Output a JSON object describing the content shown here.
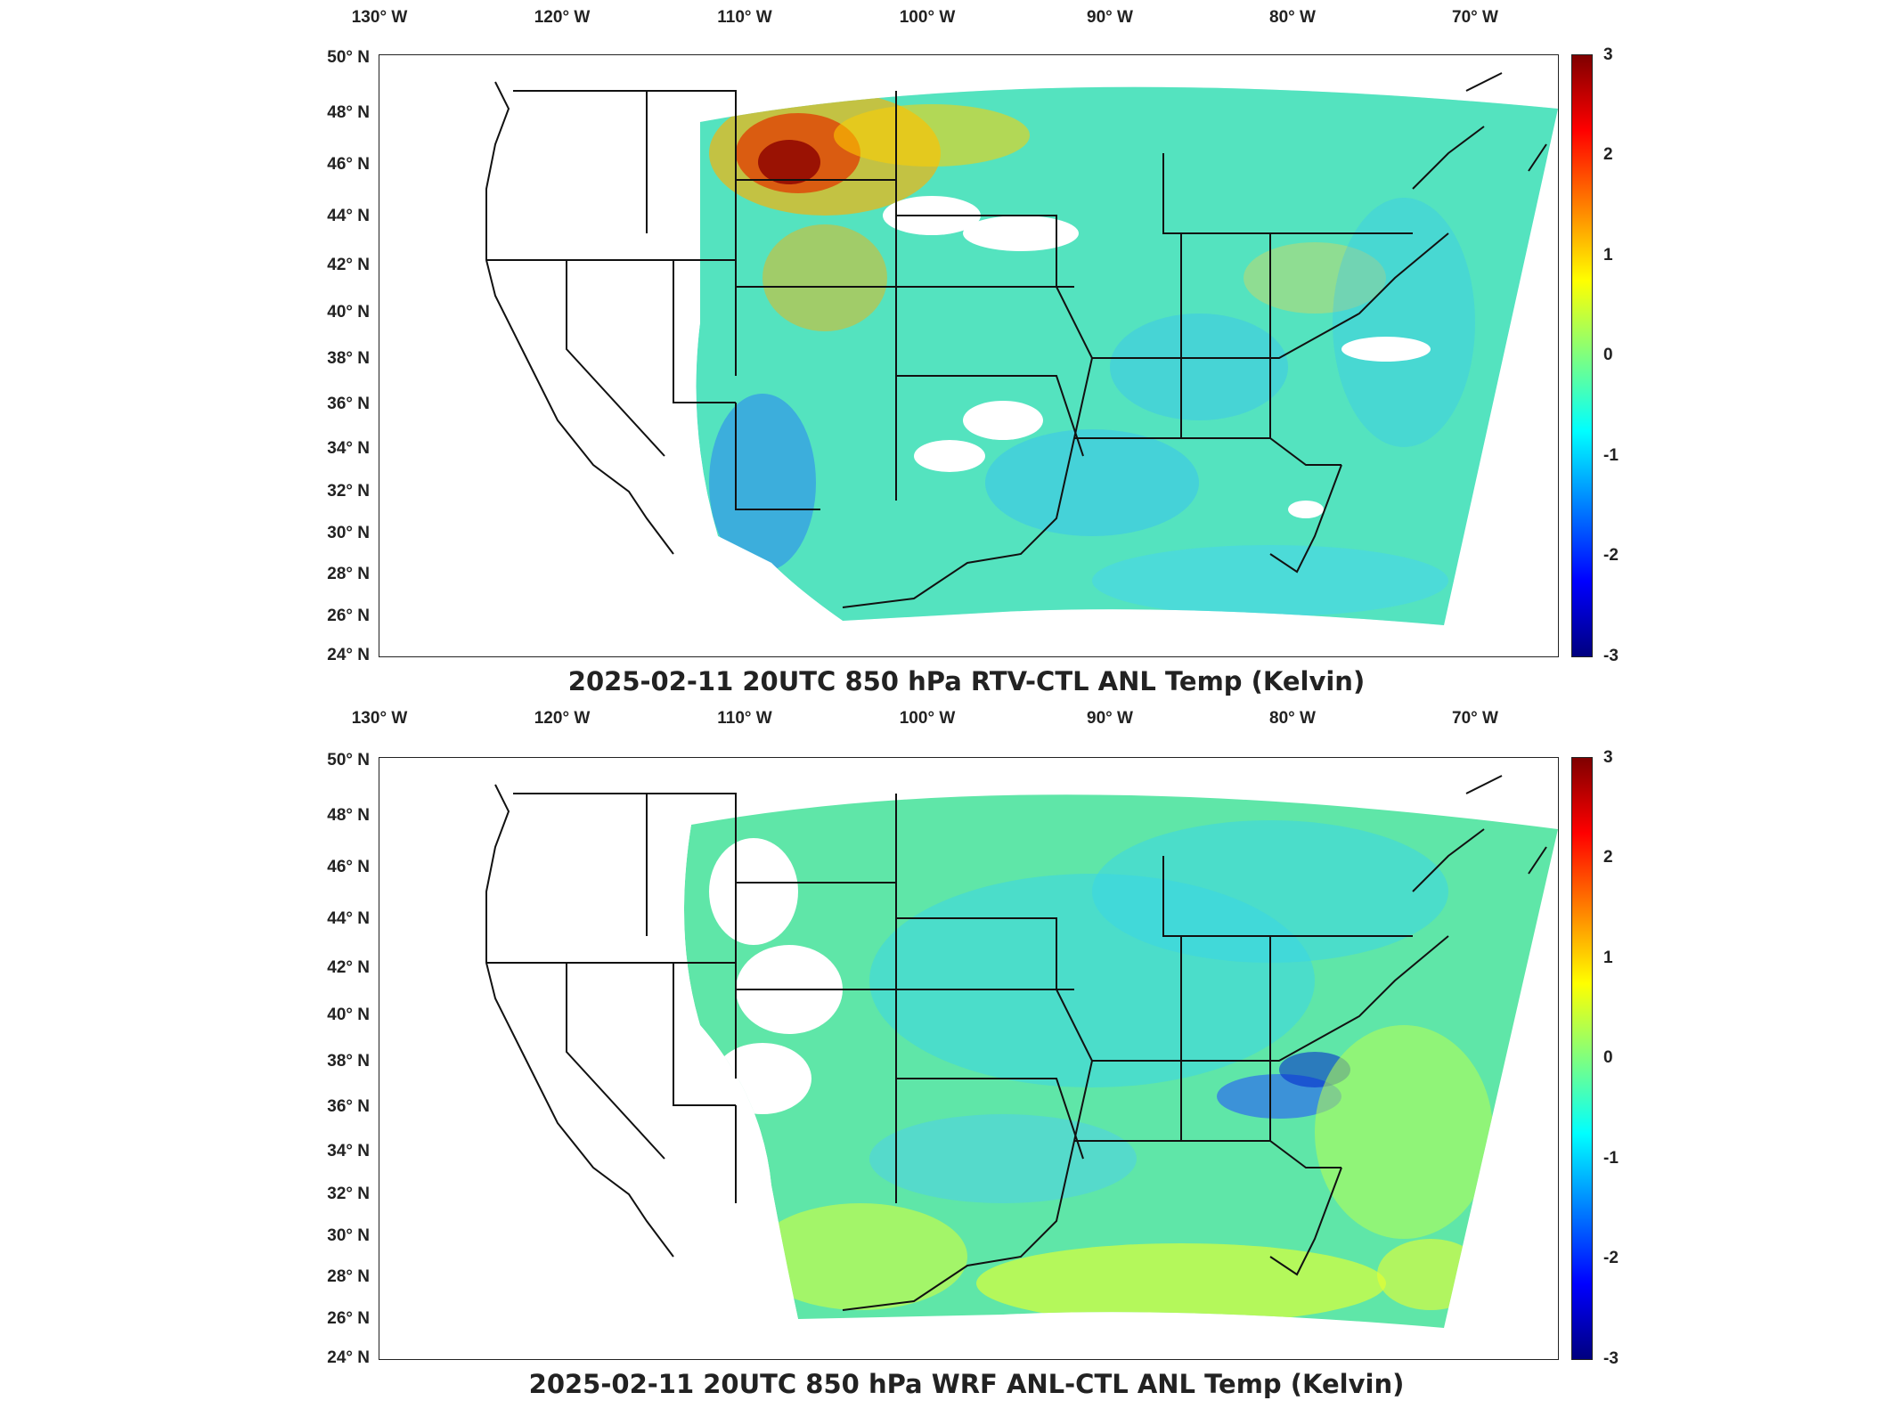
{
  "panels": [
    {
      "title": "2025-02-11 20UTC 850 hPa RTV-CTL ANL Temp (Kelvin)",
      "variant": "rtv"
    },
    {
      "title": "2025-02-11 20UTC 850 hPa WRF ANL-CTL ANL Temp (Kelvin)",
      "variant": "wrf"
    }
  ],
  "longitude_labels": [
    "130° W",
    "120° W",
    "110° W",
    "100° W",
    "90° W",
    "80° W",
    "70° W"
  ],
  "latitude_labels": [
    "50° N",
    "48° N",
    "46° N",
    "44° N",
    "42° N",
    "40° N",
    "38° N",
    "36° N",
    "34° N",
    "32° N",
    "30° N",
    "28° N",
    "26° N",
    "24° N"
  ],
  "colorbar": {
    "ticks": [
      "3",
      "2",
      "1",
      "0",
      "-1",
      "-2",
      "-3"
    ],
    "range": [
      -3,
      3
    ],
    "colormap": "jet"
  },
  "colors": {
    "background_field": "#4fe2c8",
    "border": "#111111"
  }
}
